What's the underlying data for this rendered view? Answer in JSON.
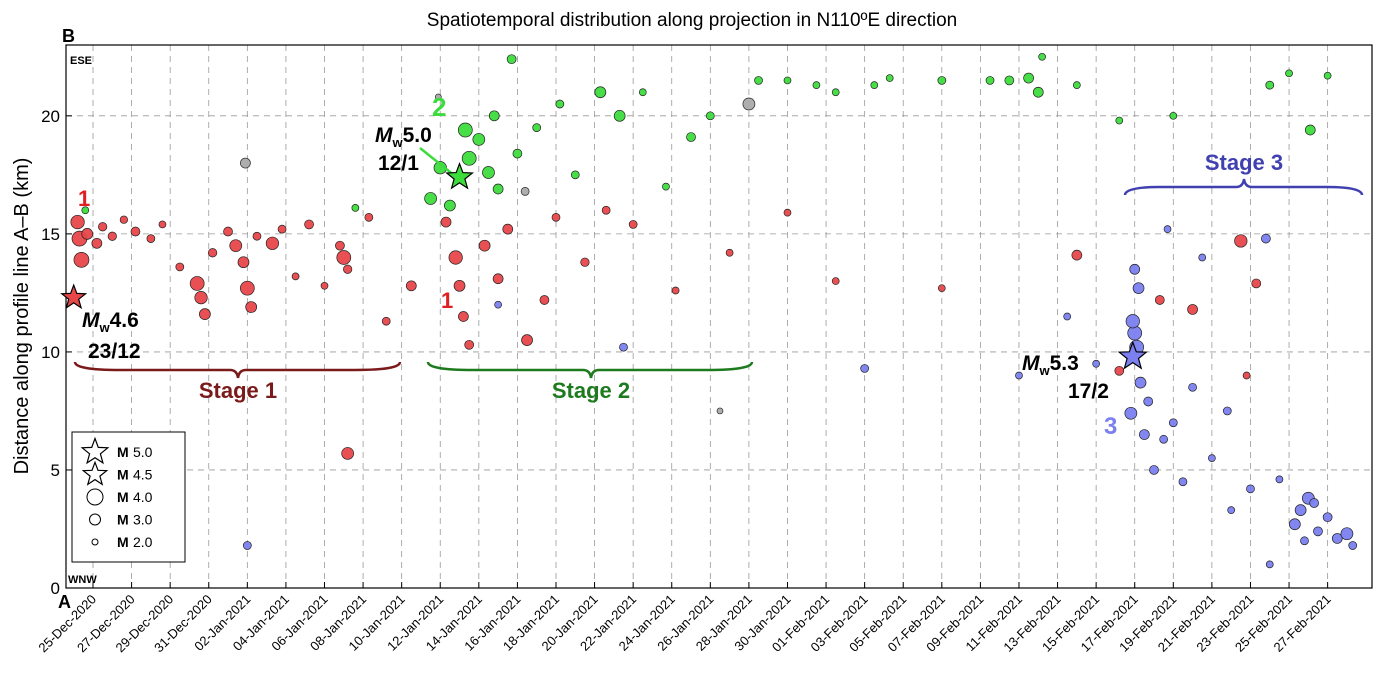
{
  "chart_data": {
    "type": "scatter",
    "title": "Spatiotemporal distribution along projection in N110ºE direction",
    "ylabel": "Distance along profile line A–B (km)",
    "xlim": [
      -1.4,
      66.3
    ],
    "ylim": [
      0,
      23
    ],
    "yticks": [
      0,
      5,
      10,
      15,
      20
    ],
    "xticks": [
      {
        "value": 0,
        "label": "25-Dec-2020"
      },
      {
        "value": 2,
        "label": "27-Dec-2020"
      },
      {
        "value": 4,
        "label": "29-Dec-2020"
      },
      {
        "value": 6,
        "label": "31-Dec-2020"
      },
      {
        "value": 8,
        "label": "02-Jan-2021"
      },
      {
        "value": 10,
        "label": "04-Jan-2021"
      },
      {
        "value": 12,
        "label": "06-Jan-2021"
      },
      {
        "value": 14,
        "label": "08-Jan-2021"
      },
      {
        "value": 16,
        "label": "10-Jan-2021"
      },
      {
        "value": 18,
        "label": "12-Jan-2021"
      },
      {
        "value": 20,
        "label": "14-Jan-2021"
      },
      {
        "value": 22,
        "label": "16-Jan-2021"
      },
      {
        "value": 24,
        "label": "18-Jan-2021"
      },
      {
        "value": 26,
        "label": "20-Jan-2021"
      },
      {
        "value": 28,
        "label": "22-Jan-2021"
      },
      {
        "value": 30,
        "label": "24-Jan-2021"
      },
      {
        "value": 32,
        "label": "26-Jan-2021"
      },
      {
        "value": 34,
        "label": "28-Jan-2021"
      },
      {
        "value": 36,
        "label": "30-Jan-2021"
      },
      {
        "value": 38,
        "label": "01-Feb-2021"
      },
      {
        "value": 40,
        "label": "03-Feb-2021"
      },
      {
        "value": 42,
        "label": "05-Feb-2021"
      },
      {
        "value": 44,
        "label": "07-Feb-2021"
      },
      {
        "value": 46,
        "label": "09-Feb-2021"
      },
      {
        "value": 48,
        "label": "11-Feb-2021"
      },
      {
        "value": 50,
        "label": "13-Feb-2021"
      },
      {
        "value": 52,
        "label": "15-Feb-2021"
      },
      {
        "value": 54,
        "label": "17-Feb-2021"
      },
      {
        "value": 56,
        "label": "19-Feb-2021"
      },
      {
        "value": 58,
        "label": "21-Feb-2021"
      },
      {
        "value": 60,
        "label": "23-Feb-2021"
      },
      {
        "value": 62,
        "label": "25-Feb-2021"
      },
      {
        "value": 64,
        "label": "27-Feb-2021"
      }
    ],
    "grid": true,
    "series": [
      {
        "color": "#e8474a",
        "x": [
          -0.8,
          -0.7,
          -0.6,
          -0.3,
          0.2,
          0.5,
          1,
          1.6,
          2.2,
          3,
          3.6,
          4.5,
          5.4,
          5.6,
          5.8,
          6.2,
          7,
          7.4,
          7.8,
          8,
          8.2,
          8.5,
          9.3,
          9.8,
          10.5,
          11.2,
          12,
          12.8,
          13,
          13.2,
          13.2,
          14.3,
          15.2,
          16.5,
          18.3,
          18.8,
          19,
          19.2,
          19.5,
          20.3,
          21,
          21.5,
          22.5,
          23.4,
          24,
          25.5,
          26.6,
          28,
          30.2,
          33,
          36,
          38.5,
          44,
          51,
          53.2,
          55.3,
          57,
          59.5,
          60.3,
          59.8
        ],
        "values": [
          15.5,
          14.8,
          13.9,
          15.0,
          14.6,
          15.3,
          14.9,
          15.6,
          15.1,
          14.8,
          15.4,
          13.6,
          12.9,
          12.3,
          11.6,
          14.2,
          15.1,
          14.5,
          13.8,
          12.7,
          11.9,
          14.9,
          14.6,
          15.2,
          13.2,
          15.4,
          12.8,
          14.5,
          14.0,
          13.5,
          5.7,
          15.7,
          11.3,
          12.8,
          15.5,
          14.0,
          12.8,
          11.5,
          10.3,
          14.5,
          13.1,
          15.2,
          10.5,
          12.2,
          15.7,
          13.8,
          16.0,
          15.4,
          12.6,
          14.2,
          15.9,
          13.0,
          12.7,
          14.1,
          9.2,
          12.2,
          11.8,
          14.7,
          12.9,
          9.0
        ],
        "sizes": [
          3.5,
          3.8,
          3.8,
          3,
          2.8,
          2.5,
          2.5,
          2.3,
          2.6,
          2.4,
          2.2,
          2.4,
          3.6,
          3.3,
          3,
          2.5,
          2.6,
          3.2,
          3,
          3.6,
          3,
          2.4,
          3.3,
          2.4,
          2.2,
          2.6,
          2.2,
          2.6,
          3.6,
          2.5,
          3.2,
          2.4,
          2.4,
          2.8,
          2.8,
          3.5,
          3,
          2.8,
          2.6,
          3,
          2.8,
          2.8,
          3,
          2.6,
          2.4,
          2.5,
          2.4,
          2.4,
          2.2,
          2.2,
          2.2,
          2.2,
          2.2,
          2.8,
          2.6,
          2.6,
          2.8,
          3.3,
          2.6,
          2.2
        ]
      },
      {
        "color": "#3ddc3d",
        "x": [
          17.5,
          18,
          18.5,
          19.3,
          19.5,
          20,
          20.5,
          20.8,
          21,
          21.7,
          22,
          23,
          24.2,
          25,
          26.3,
          27.3,
          28.5,
          29.7,
          31,
          32,
          34.5,
          36,
          37.5,
          38.5,
          40.5,
          41.3,
          44,
          46.5,
          47.5,
          48.5,
          49,
          49.2,
          51,
          53.2,
          56,
          61,
          62,
          63.1,
          64,
          -0.4,
          13.6
        ],
        "values": [
          16.5,
          17.8,
          16.2,
          19.4,
          18.2,
          19.0,
          17.6,
          20.0,
          16.9,
          22.4,
          18.4,
          19.5,
          20.5,
          17.5,
          21.0,
          20.0,
          21.0,
          17.0,
          19.1,
          20.0,
          21.5,
          21.5,
          21.3,
          21.0,
          21.3,
          21.6,
          21.5,
          21.5,
          21.5,
          21.6,
          21.0,
          22.5,
          21.3,
          19.8,
          20.0,
          21.3,
          21.8,
          19.4,
          21.7,
          16.0,
          16.1
        ],
        "sizes": [
          3.2,
          3.3,
          3,
          3.6,
          3.6,
          3.2,
          3.2,
          2.8,
          2.8,
          2.6,
          2.6,
          2.4,
          2.4,
          2.4,
          3,
          3,
          2.2,
          2.2,
          2.6,
          2.4,
          2.4,
          2.2,
          2.2,
          2.2,
          2.2,
          2.2,
          2.4,
          2.4,
          2.6,
          2.8,
          2.8,
          2.2,
          2.2,
          2.2,
          2.2,
          2.4,
          2.2,
          2.8,
          2.2,
          2.2,
          2.2
        ]
      },
      {
        "color": "#aaaaaa",
        "x": [
          7.9,
          17.9,
          22.4,
          34,
          32.5
        ],
        "values": [
          18.0,
          20.8,
          16.8,
          20.5,
          7.5
        ],
        "sizes": [
          2.8,
          2,
          2.4,
          3.2,
          2
        ]
      },
      {
        "color": "#7b7ff0",
        "x": [
          54,
          54.1,
          53.9,
          54.2,
          54,
          54.3,
          53.8,
          54.5,
          54.7,
          55,
          55.5,
          56,
          56.5,
          57,
          58,
          58.8,
          59,
          60,
          60.8,
          61.5,
          62.3,
          62.6,
          63,
          63.5,
          64,
          64.5,
          65,
          65.3,
          63.3,
          62.8,
          61,
          55.7,
          57.5,
          52,
          48,
          40,
          8,
          21,
          27.5,
          50.5
        ],
        "values": [
          10.8,
          10.2,
          11.3,
          12.7,
          13.5,
          8.7,
          7.4,
          6.5,
          7.9,
          5.0,
          6.3,
          7.0,
          4.5,
          8.5,
          5.5,
          7.5,
          3.3,
          4.2,
          14.8,
          4.6,
          2.7,
          3.3,
          3.8,
          2.4,
          3.0,
          2.1,
          2.3,
          1.8,
          3.6,
          2.0,
          1.0,
          15.2,
          14.0,
          9.5,
          9.0,
          9.3,
          1.8,
          12.0,
          10.2,
          11.5
        ],
        "sizes": [
          3.6,
          3.6,
          3.5,
          3,
          2.8,
          3,
          3.2,
          2.8,
          2.6,
          2.6,
          2.4,
          2.4,
          2.4,
          2.4,
          2.2,
          2.4,
          2.2,
          2.4,
          2.6,
          2.2,
          3,
          3,
          3.2,
          2.6,
          2.6,
          2.8,
          3.2,
          2.4,
          2.6,
          2.4,
          2.2,
          2.2,
          2.2,
          2.2,
          2.2,
          2.4,
          2.4,
          2.2,
          2.4,
          2.2
        ]
      }
    ],
    "mainshocks": [
      {
        "x": -1.0,
        "y": 12.3,
        "magnitude": {
          "value": 4.6,
          "label": "4.6"
        },
        "date": "23/12",
        "color": "#e8474a"
      },
      {
        "x": 19.0,
        "y": 17.4,
        "magnitude": {
          "value": 5.0,
          "label": "5.0"
        },
        "date": "12/1",
        "color": "#3ddc3d"
      },
      {
        "x": 53.9,
        "y": 9.8,
        "magnitude": {
          "value": 5.3,
          "label": "5.3"
        },
        "date": "17/2",
        "color": "#7b7ff0"
      }
    ],
    "mw_symbol": "M",
    "mw_subscript": "w",
    "legend": {
      "symbol": "M",
      "items": [
        {
          "shape": "star",
          "value": 5,
          "label": "5.0"
        },
        {
          "shape": "star",
          "value": 4.5,
          "label": "4.5"
        },
        {
          "shape": "circle",
          "value": 4,
          "label": "4.0"
        },
        {
          "shape": "circle",
          "value": 3,
          "label": "3.0"
        },
        {
          "shape": "circle",
          "value": 2,
          "label": "2.0"
        }
      ]
    },
    "annotations": {
      "top_point": "B",
      "bottom_point": "A",
      "top_direction": "ESE",
      "bottom_direction": "WNW",
      "cluster_1a": "1",
      "cluster_1b": "1",
      "cluster_2": "2",
      "cluster_3": "3",
      "stage_1": "Stage 1",
      "stage_2": "Stage 2",
      "stage_3": "Stage 3"
    }
  }
}
